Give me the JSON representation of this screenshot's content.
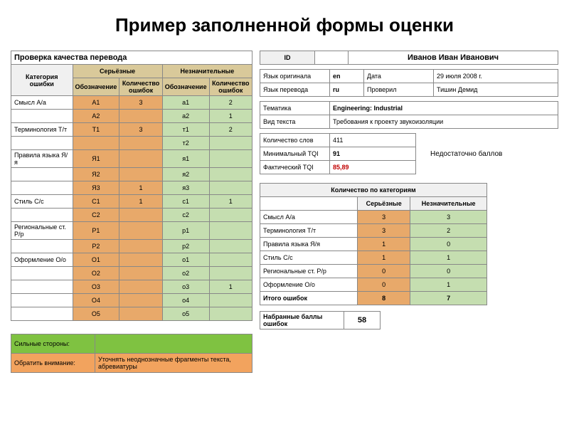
{
  "page_title": "Пример заполненной формы оценки",
  "colors": {
    "beige": "#d9c99a",
    "orange": "#e8a96a",
    "green_light": "#c5deb0",
    "green_bright": "#7fc241",
    "orange_bright": "#f2a35e",
    "red_text": "#c00000"
  },
  "left_table": {
    "title": "Проверка качества перевода",
    "cat_header": "Категория ошибки",
    "serious": "Серьёзные",
    "minor": "Незначительные",
    "sub_design": "Обозначение",
    "sub_count": "Количество ошибок",
    "rows": [
      {
        "cat": "Смысл А/а",
        "s_code": "А1",
        "s_cnt": "3",
        "m_code": "а1",
        "m_cnt": "2"
      },
      {
        "cat": "",
        "s_code": "А2",
        "s_cnt": "",
        "m_code": "а2",
        "m_cnt": "1"
      },
      {
        "cat": "Терминология Т/т",
        "s_code": "Т1",
        "s_cnt": "3",
        "m_code": "т1",
        "m_cnt": "2"
      },
      {
        "cat": "",
        "s_code": "",
        "s_cnt": "",
        "m_code": "т2",
        "m_cnt": ""
      },
      {
        "cat": "Правила языка Я/я",
        "s_code": "Я1",
        "s_cnt": "",
        "m_code": "я1",
        "m_cnt": ""
      },
      {
        "cat": "",
        "s_code": "Я2",
        "s_cnt": "",
        "m_code": "я2",
        "m_cnt": ""
      },
      {
        "cat": "",
        "s_code": "Я3",
        "s_cnt": "1",
        "m_code": "я3",
        "m_cnt": ""
      },
      {
        "cat": "Стиль С/с",
        "s_code": "С1",
        "s_cnt": "1",
        "m_code": "с1",
        "m_cnt": "1"
      },
      {
        "cat": "",
        "s_code": "С2",
        "s_cnt": "",
        "m_code": "с2",
        "m_cnt": ""
      },
      {
        "cat": "Региональные ст. Р/р",
        "s_code": "Р1",
        "s_cnt": "",
        "m_code": "р1",
        "m_cnt": ""
      },
      {
        "cat": "",
        "s_code": "Р2",
        "s_cnt": "",
        "m_code": "р2",
        "m_cnt": ""
      },
      {
        "cat": "Оформление О/о",
        "s_code": "О1",
        "s_cnt": "",
        "m_code": "о1",
        "m_cnt": ""
      },
      {
        "cat": "",
        "s_code": "О2",
        "s_cnt": "",
        "m_code": "о2",
        "m_cnt": ""
      },
      {
        "cat": "",
        "s_code": "О3",
        "s_cnt": "",
        "m_code": "о3",
        "m_cnt": "1"
      },
      {
        "cat": "",
        "s_code": "О4",
        "s_cnt": "",
        "m_code": "о4",
        "m_cnt": ""
      },
      {
        "cat": "",
        "s_code": "О5",
        "s_cnt": "",
        "m_code": "о5",
        "m_cnt": ""
      }
    ],
    "strengths_label": "Сильные стороны:",
    "strengths_value": "",
    "attention_label": "Обратить внимание:",
    "attention_value": "Уточнять неоднозначные фрагменты текста, абревиатуры"
  },
  "id_block": {
    "id_label": "ID",
    "id_value": "",
    "name": "Иванов Иван Иванович"
  },
  "meta": {
    "lang_orig_l": "Язык оригинала",
    "lang_orig_v": "en",
    "date_l": "Дата",
    "date_v": "29 июля 2008 г.",
    "lang_tr_l": "Язык перевода",
    "lang_tr_v": "ru",
    "checked_l": "Проверил",
    "checked_v": "Тишин Демид",
    "topic_l": "Тематика",
    "topic_v": "Engineering: Industrial",
    "type_l": "Вид текста",
    "type_v": "Требования к проекту звукоизоляции",
    "words_l": "Количество слов",
    "words_v": "411",
    "min_tqi_l": "Минимальный TQI",
    "min_tqi_v": "91",
    "fact_tqi_l": "Фактический TQI",
    "fact_tqi_v": "85,89",
    "note": "Недостаточно баллов"
  },
  "summary": {
    "title": "Количество по категориям",
    "col_serious": "Серьёзные",
    "col_minor": "Незначительные",
    "rows": [
      {
        "cat": "Смысл А/а",
        "s": "3",
        "m": "3"
      },
      {
        "cat": "Терминология Т/т",
        "s": "3",
        "m": "2"
      },
      {
        "cat": "Правила языка Я/я",
        "s": "1",
        "m": "0"
      },
      {
        "cat": "Стиль С/с",
        "s": "1",
        "m": "1"
      },
      {
        "cat": "Региональные ст. Р/р",
        "s": "0",
        "m": "0"
      },
      {
        "cat": "Оформление О/о",
        "s": "0",
        "m": "1"
      }
    ],
    "total_label": "Итого ошибок",
    "total_s": "8",
    "total_m": "7"
  },
  "score": {
    "label": "Набранные баллы ошибок",
    "value": "58"
  }
}
